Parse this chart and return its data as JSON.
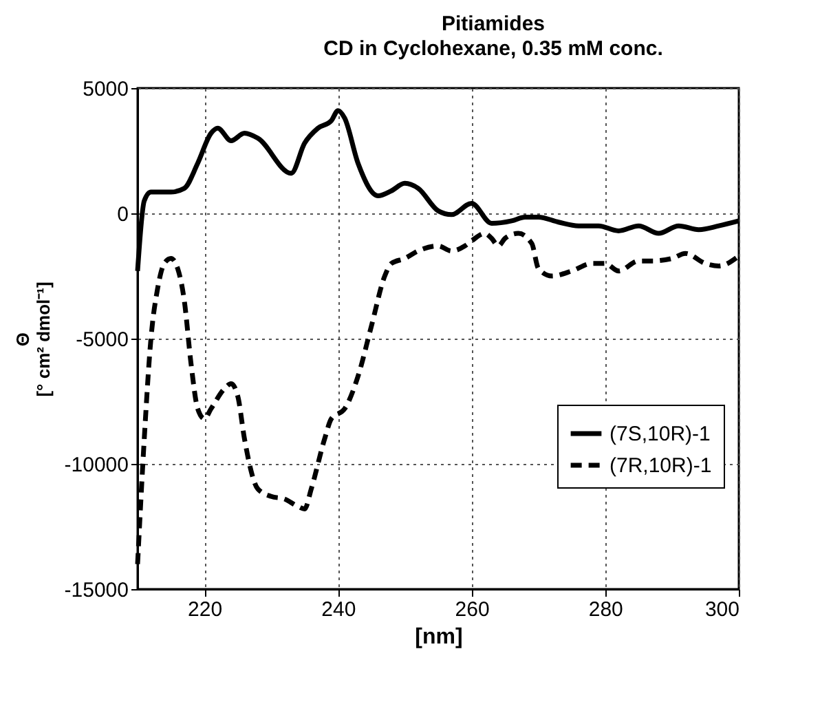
{
  "chart_data": {
    "type": "line",
    "title": "Pitiamides",
    "subtitle": "CD in Cyclohexane, 0.35 mM conc.",
    "xlabel": "[nm]",
    "ylabel": "Θ\n[° cm² dmol⁻¹]",
    "xlim": [
      210,
      300
    ],
    "xticks": [
      220,
      240,
      260,
      280,
      300
    ],
    "ylim": [
      -15000,
      5000
    ],
    "yticks": [
      -15000,
      -10000,
      -5000,
      0,
      5000
    ],
    "grid": true,
    "legend": "right",
    "series": [
      {
        "name": "(7S,10R)-1",
        "color": "#000000",
        "line_style": "solid",
        "x": [
          210,
          211,
          212,
          215,
          217,
          219,
          221,
          222,
          224,
          226,
          228,
          233,
          235,
          237,
          239,
          240,
          241,
          243,
          246,
          248,
          250,
          252,
          255,
          257,
          260,
          263,
          266,
          268,
          270,
          273,
          276,
          279,
          282,
          285,
          288,
          291,
          294,
          297,
          300
        ],
        "values": [
          -2300,
          500,
          850,
          850,
          1000,
          2000,
          3200,
          3400,
          2900,
          3200,
          3000,
          1600,
          2800,
          3400,
          3700,
          4100,
          3800,
          2000,
          700,
          900,
          1200,
          1000,
          100,
          -50,
          400,
          -400,
          -300,
          -150,
          -150,
          -350,
          -500,
          -500,
          -700,
          -500,
          -800,
          -500,
          -650,
          -500,
          -300
        ]
      },
      {
        "name": "(7R,10R)-1",
        "color": "#000000",
        "line_style": "dashed",
        "x": [
          210,
          211,
          212,
          213,
          214,
          215,
          216,
          217,
          218,
          219,
          220,
          221,
          223,
          224,
          225,
          226,
          228,
          230,
          232,
          234,
          235,
          236,
          238,
          239,
          241,
          243,
          245,
          247,
          248,
          250,
          252,
          255,
          257,
          259,
          260,
          262,
          263,
          264,
          265,
          267,
          269,
          270,
          272,
          275,
          278,
          280,
          282,
          285,
          287,
          290,
          292,
          295,
          297,
          300
        ],
        "values": [
          -14000,
          -9000,
          -5000,
          -3000,
          -2000,
          -1800,
          -2200,
          -3500,
          -6000,
          -7800,
          -8200,
          -7800,
          -7000,
          -6800,
          -7300,
          -9000,
          -11000,
          -11300,
          -11400,
          -11700,
          -11800,
          -11000,
          -9000,
          -8200,
          -7800,
          -6500,
          -4500,
          -2500,
          -2000,
          -1800,
          -1500,
          -1300,
          -1500,
          -1300,
          -1100,
          -800,
          -1000,
          -1300,
          -1000,
          -800,
          -1200,
          -2200,
          -2500,
          -2300,
          -2000,
          -2000,
          -2300,
          -1900,
          -1900,
          -1800,
          -1600,
          -2000,
          -2100,
          -1700
        ]
      }
    ]
  }
}
